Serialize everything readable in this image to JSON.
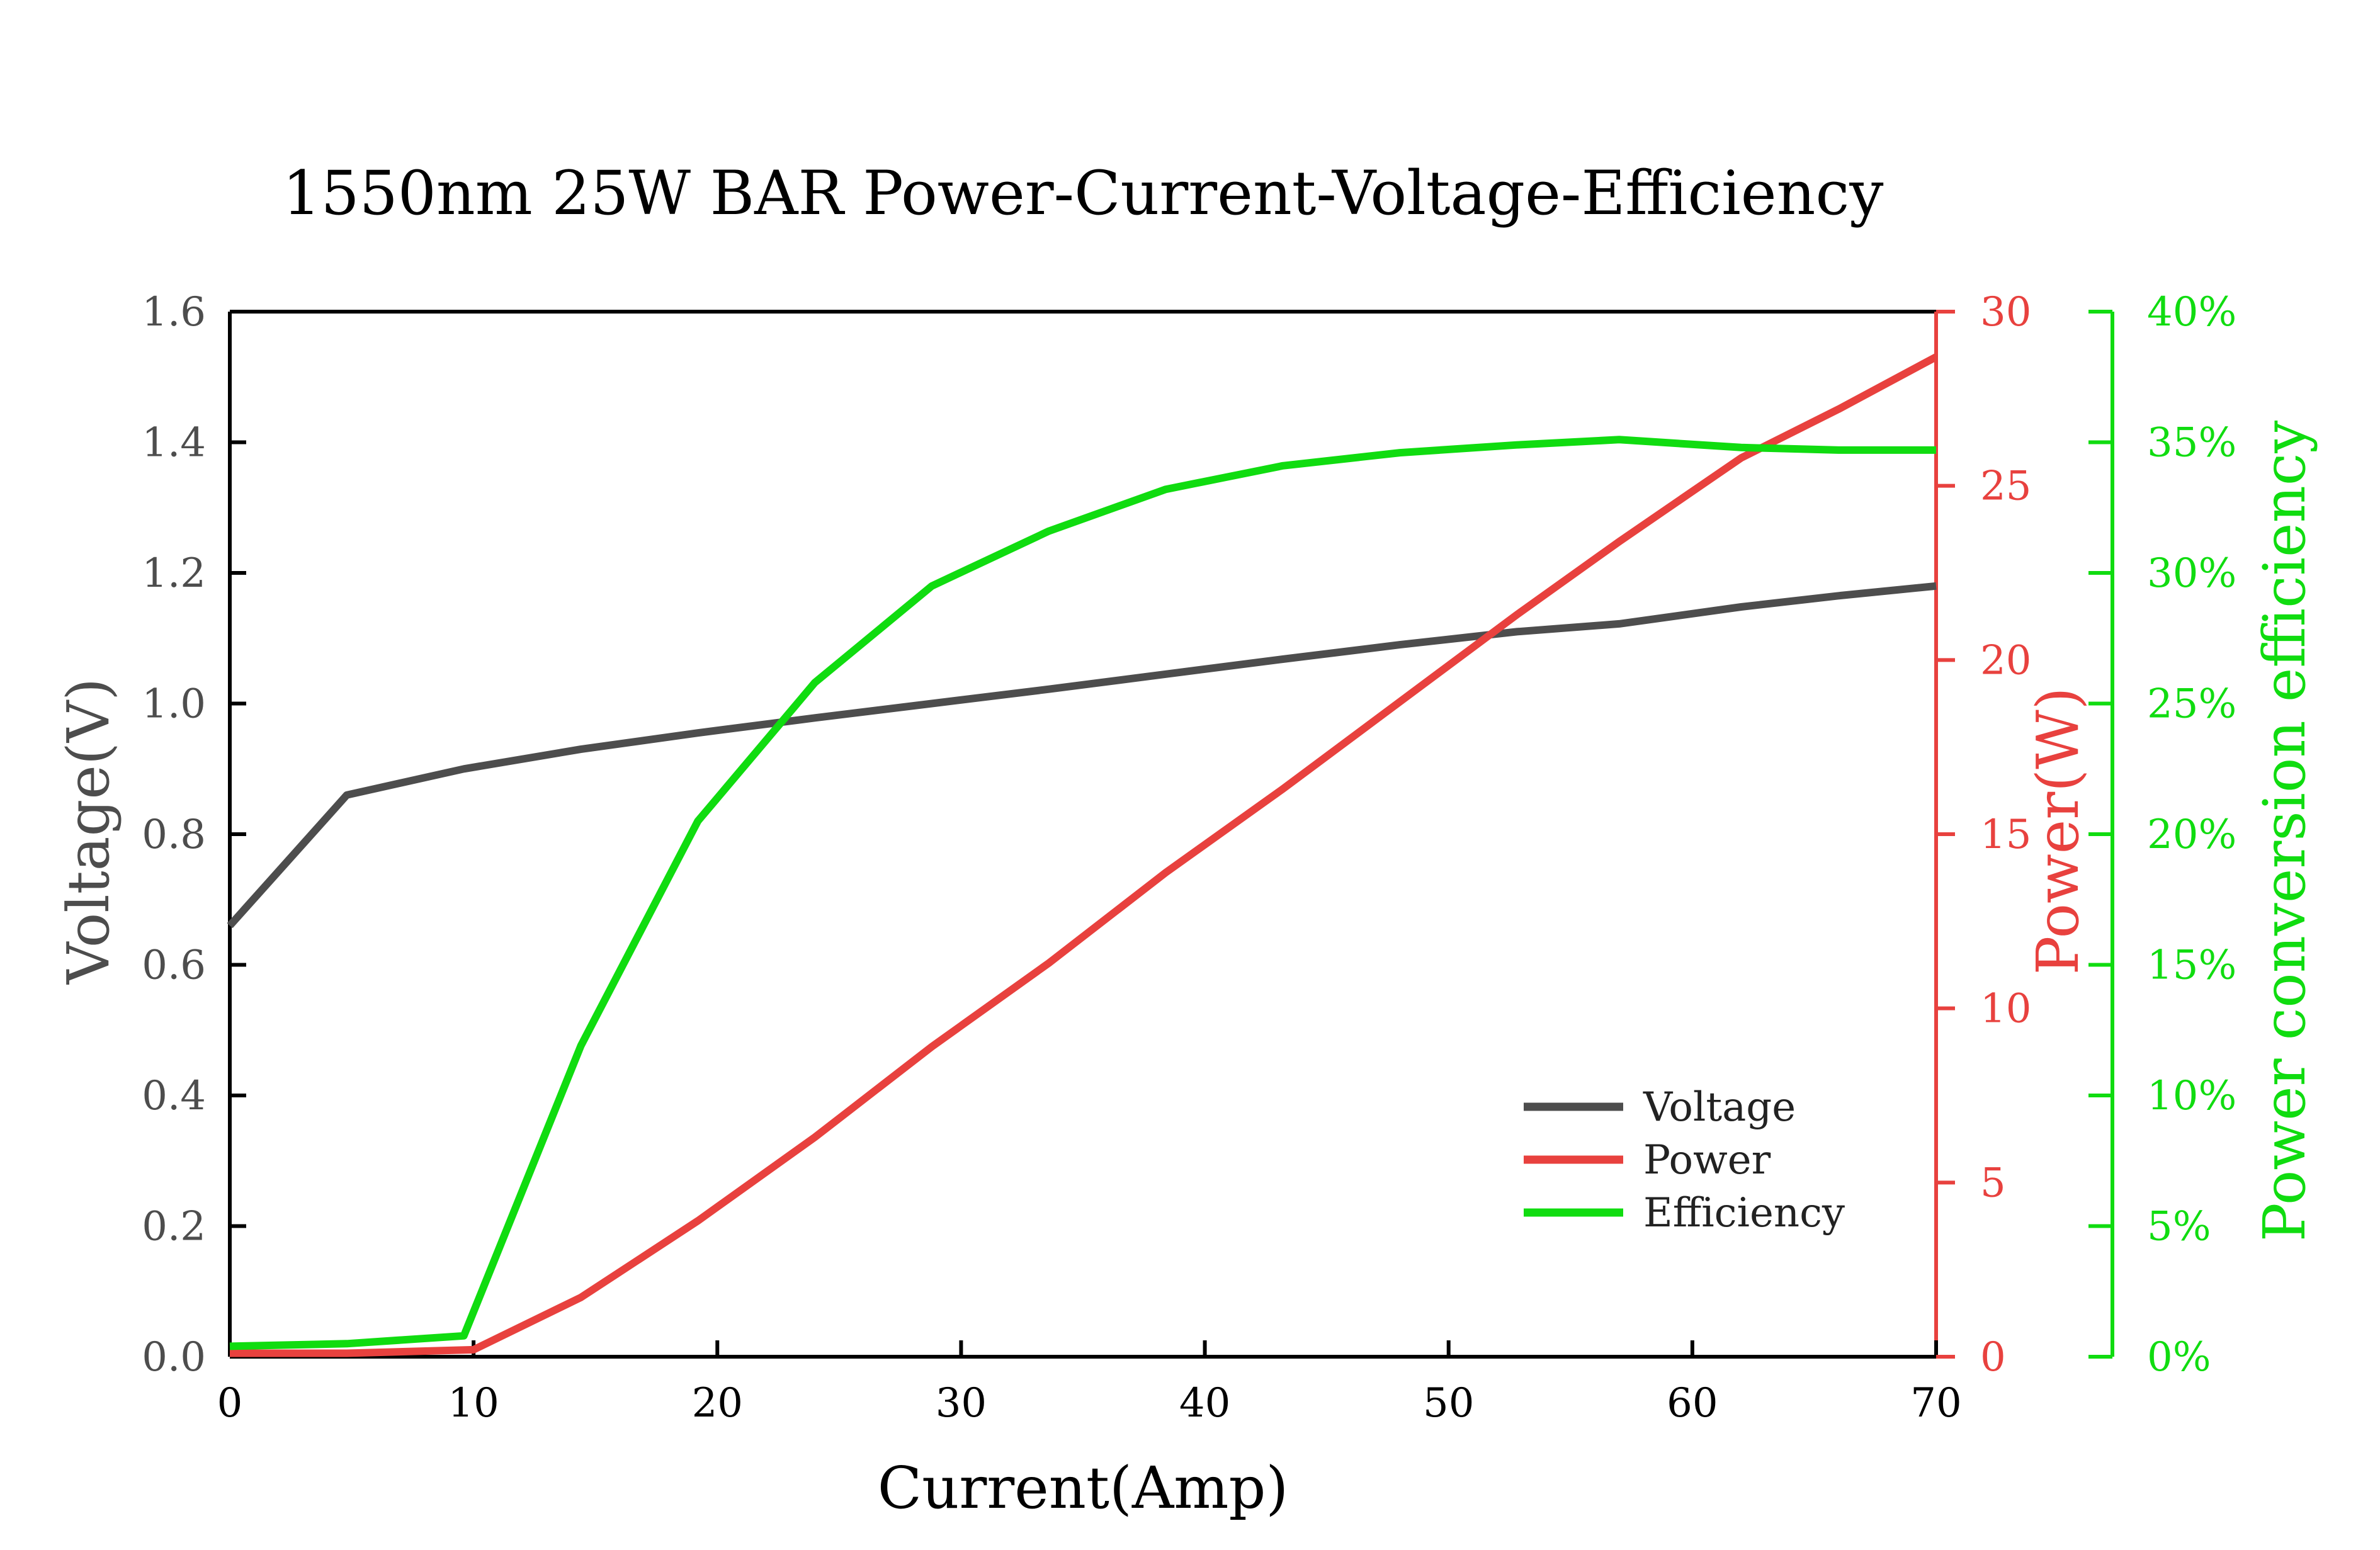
{
  "chart_data": {
    "type": "line",
    "title": "1550nm 25W BAR Power-Current-Voltage-Efficiency",
    "xlabel": "Current(Amp)",
    "xlim": [
      0,
      70
    ],
    "xticks": [
      "0",
      "10",
      "20",
      "30",
      "40",
      "50",
      "60",
      "70"
    ],
    "axes": {
      "voltage": {
        "label": "Voltage(V)",
        "lim": [
          0,
          1.6
        ],
        "ticks": [
          "0.0",
          "0.2",
          "0.4",
          "0.6",
          "0.8",
          "1.0",
          "1.2",
          "1.4",
          "1.6"
        ],
        "color": "#4d4d4d"
      },
      "power": {
        "label": "Power(W)",
        "lim": [
          0,
          30
        ],
        "ticks": [
          "0",
          "5",
          "10",
          "15",
          "20",
          "25",
          "30"
        ],
        "color": "#e8413e"
      },
      "efficiency": {
        "label": "Power conversion efficiency",
        "lim": [
          0,
          40
        ],
        "ticks": [
          "0%",
          "5%",
          "10%",
          "15%",
          "20%",
          "25%",
          "30%",
          "35%",
          "40%"
        ],
        "color": "#10dc10"
      }
    },
    "series": [
      {
        "name": "Voltage",
        "axis": "voltage",
        "color": "#4d4d4d",
        "x": [
          0,
          4.8,
          9.6,
          14.4,
          19.2,
          24,
          28.8,
          33.6,
          38.4,
          43.2,
          48,
          52.8,
          57,
          62,
          66,
          70
        ],
        "y": [
          0.66,
          0.86,
          0.9,
          0.93,
          0.955,
          0.978,
          1.0,
          1.022,
          1.045,
          1.068,
          1.09,
          1.11,
          1.122,
          1.148,
          1.165,
          1.18
        ]
      },
      {
        "name": "Power",
        "axis": "power",
        "color": "#e8413e",
        "x": [
          0,
          4.8,
          10,
          14.4,
          19.2,
          24,
          28.8,
          33.6,
          38.4,
          43.2,
          48,
          52.8,
          57,
          62,
          66,
          70
        ],
        "y": [
          0.1,
          0.1,
          0.2,
          1.7,
          3.9,
          6.3,
          8.9,
          11.3,
          13.9,
          16.3,
          18.8,
          21.3,
          23.4,
          25.8,
          27.2,
          28.7
        ]
      },
      {
        "name": "Efficiency",
        "axis": "efficiency",
        "color": "#10dc10",
        "x": [
          0,
          4.8,
          9.6,
          14.4,
          19.2,
          24,
          28.8,
          33.6,
          38.4,
          43.2,
          48,
          52.8,
          57,
          62,
          66,
          70
        ],
        "y": [
          0.4,
          0.5,
          0.8,
          11.9,
          20.5,
          25.8,
          29.5,
          31.6,
          33.2,
          34.1,
          34.6,
          34.9,
          35.1,
          34.8,
          34.7,
          34.7
        ]
      }
    ],
    "legend": {
      "position": "lower-right",
      "entries": [
        "Voltage",
        "Power",
        "Efficiency"
      ]
    },
    "grid": false
  }
}
